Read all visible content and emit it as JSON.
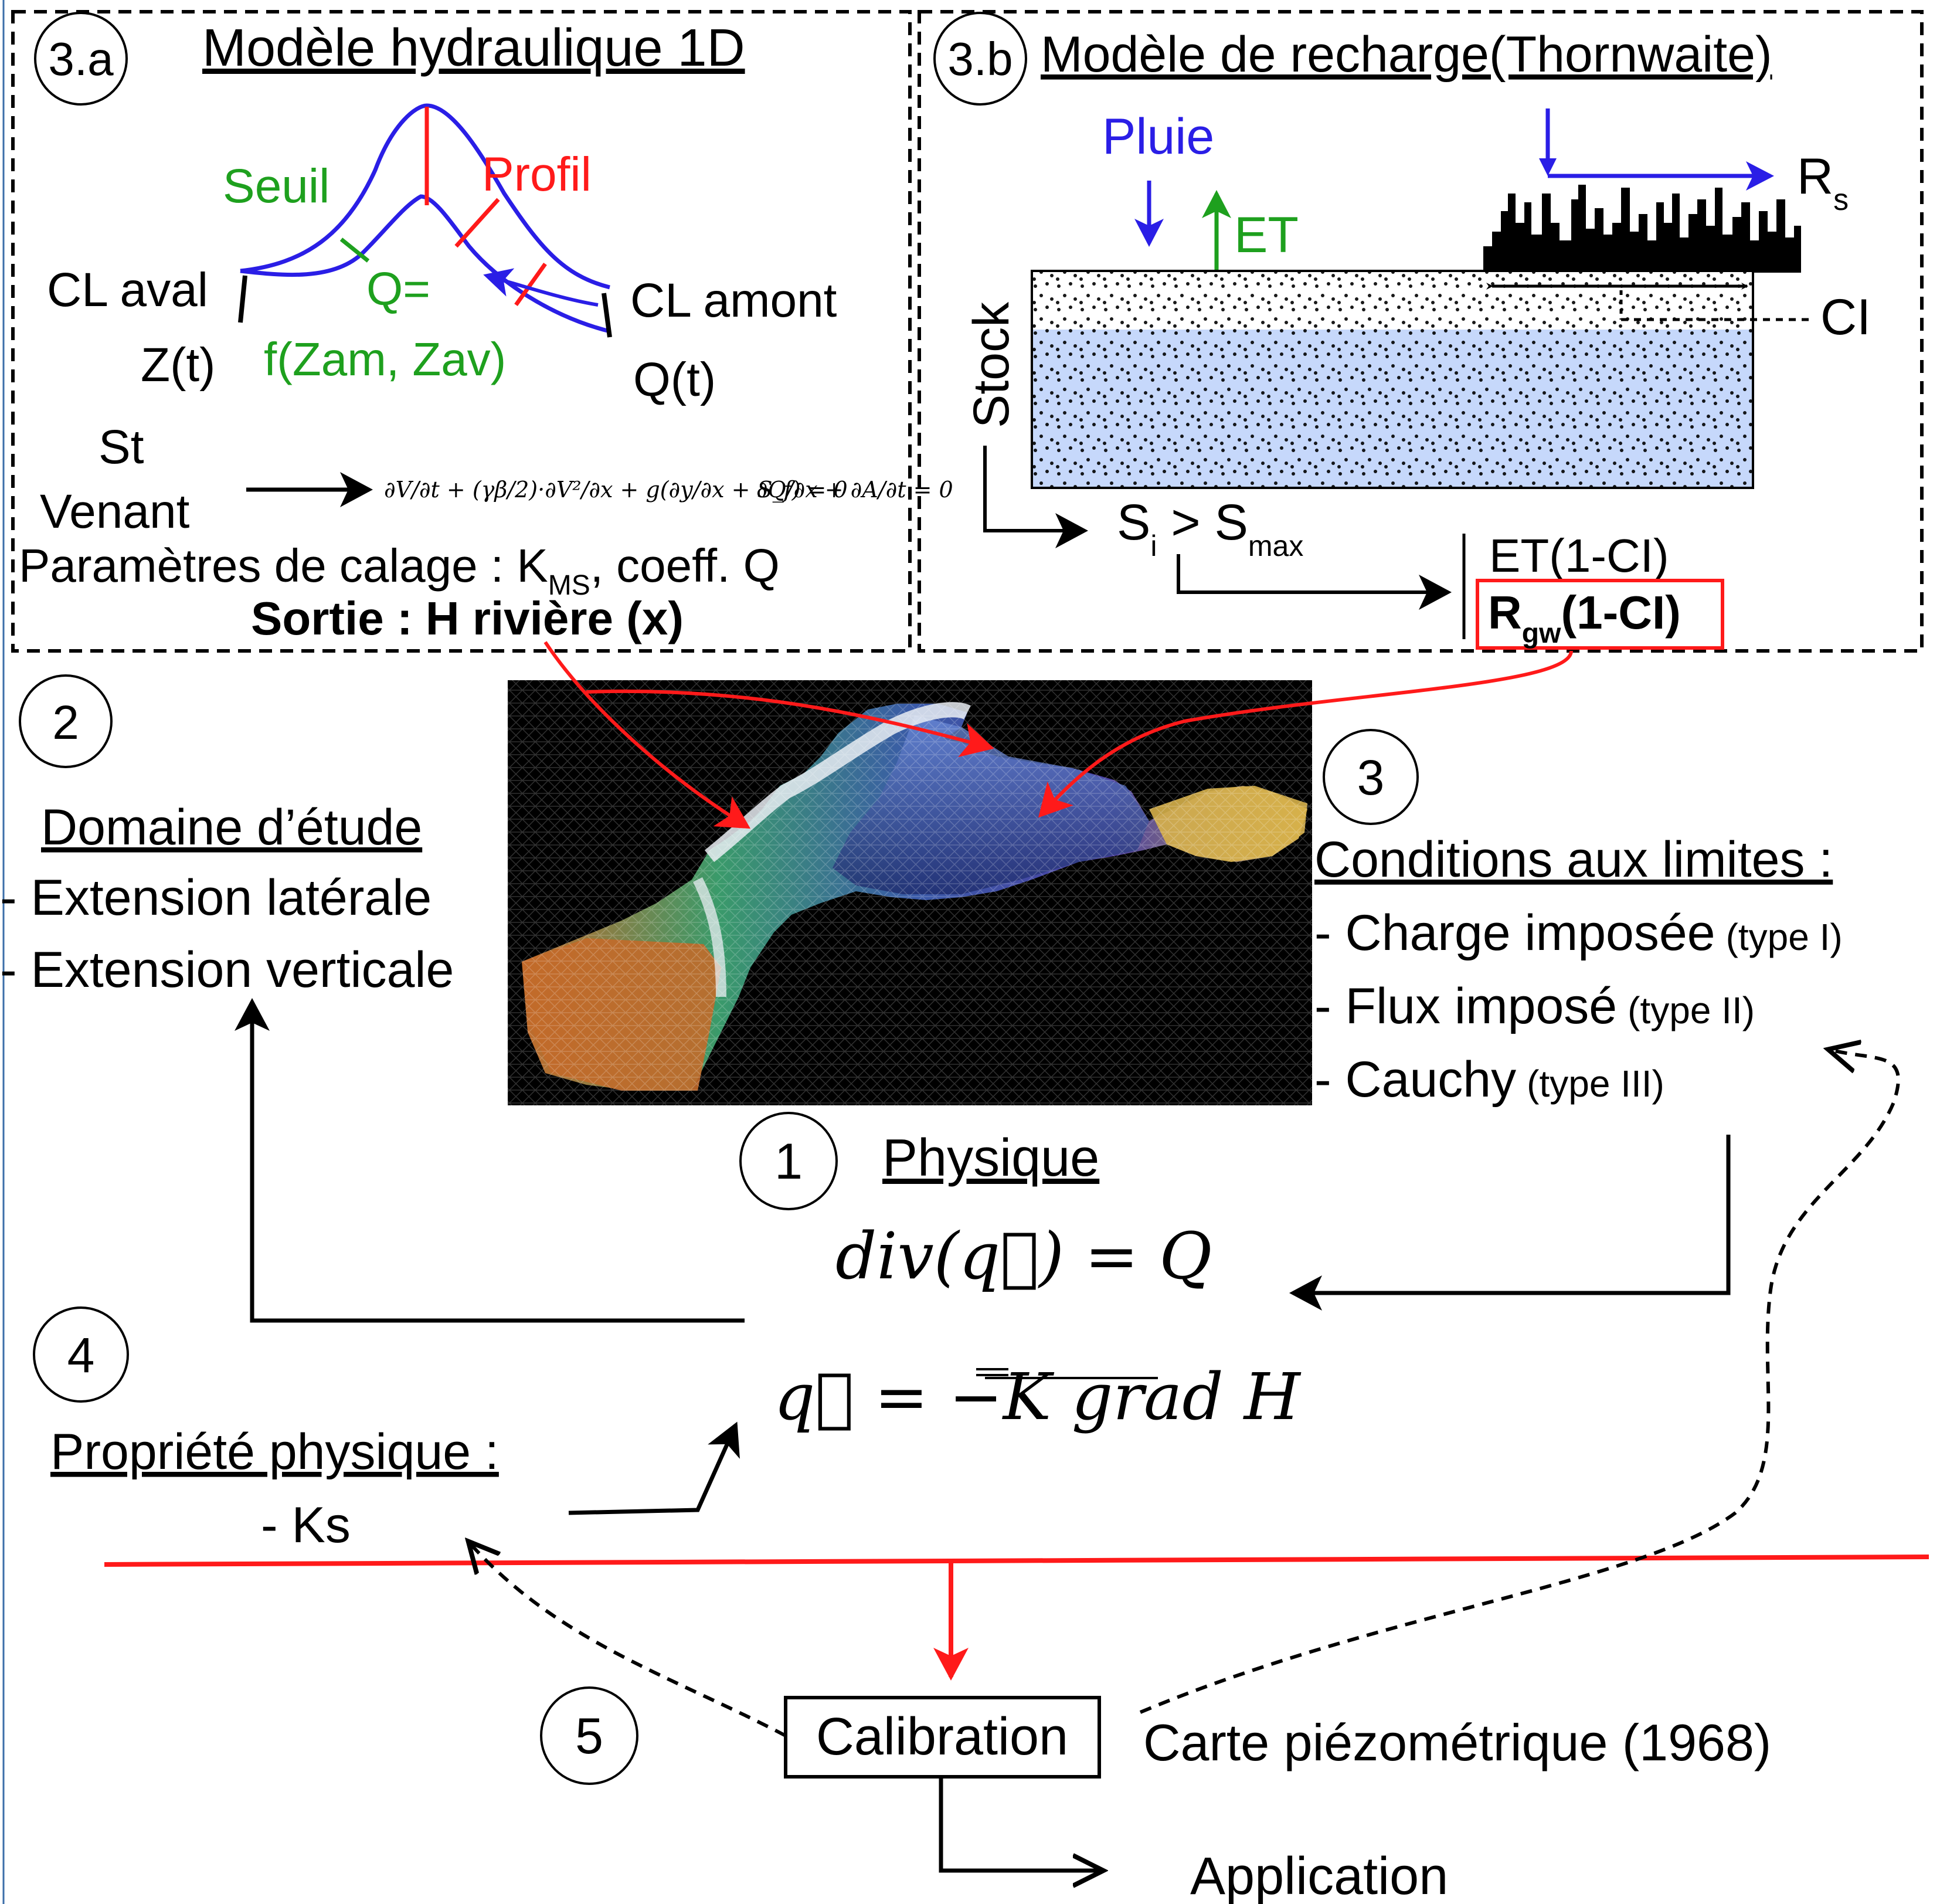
{
  "panel_3a": {
    "badge": "3.a",
    "title": "Modèle hydraulique 1D",
    "seuil": "Seuil",
    "profil": "Profil",
    "q_eq": "Q=",
    "q_func": "f(Zam, Zav)",
    "cl_aval": "CL aval",
    "cl_amont": "CL amont",
    "z_t": "Z(t)",
    "q_t": "Q(t)",
    "st": "St",
    "venant": "Venant",
    "equation_momentum": "∂V/∂t + (γβ/2)·∂V²/∂x + g(∂y/∂x + S_f) = 0",
    "equation_continuity": "∂Q/∂x + ∂A/∂t = 0",
    "calage_prefix": "Paramètres de calage : K",
    "calage_sub": "MS",
    "calage_suffix": ", coeff. Q",
    "sortie": "Sortie : H rivière (x)"
  },
  "panel_3b": {
    "badge": "3.b",
    "title": "Modèle de recharge(Thornwaite)",
    "pluie": "Pluie",
    "et": "ET",
    "rs": "R",
    "rs_sub": "s",
    "ci": "CI",
    "stock": "Stock",
    "si_base": "S",
    "si_sub": "i",
    "gt": " > S",
    "smax_sub": "max",
    "et_ci": "ET(1-CI)",
    "rgw": "R",
    "rgw_sub": "gw",
    "rgw_suffix": "(1-CI)"
  },
  "section_2": {
    "badge": "2",
    "title": "Domaine d’étude",
    "items": [
      "- Extension latérale",
      "- Extension verticale"
    ]
  },
  "section_3": {
    "badge": "3",
    "title": "Conditions aux limites :",
    "items": [
      {
        "main": "- Charge imposée",
        "type": "(type I)"
      },
      {
        "main": "- Flux imposé",
        "type": "(type II)"
      },
      {
        "main": "- Cauchy",
        "type": "(type III)"
      }
    ]
  },
  "section_1": {
    "badge": "1",
    "title": "Physique",
    "equation_div": "div(q⃗) = Q",
    "equation_darcy": "q⃗ = −K grad H"
  },
  "section_4": {
    "badge": "4",
    "title": "Propriété physique :",
    "item": "- Ks"
  },
  "section_5": {
    "badge": "5",
    "calibration": "Calibration",
    "carte": "Carte piézométrique (1968)",
    "application": "Application"
  },
  "colors": {
    "red": "#ff1a1a",
    "blue": "#2a1ee6",
    "green": "#1ea01e",
    "water": "#c6d8fb",
    "black": "#000000"
  }
}
